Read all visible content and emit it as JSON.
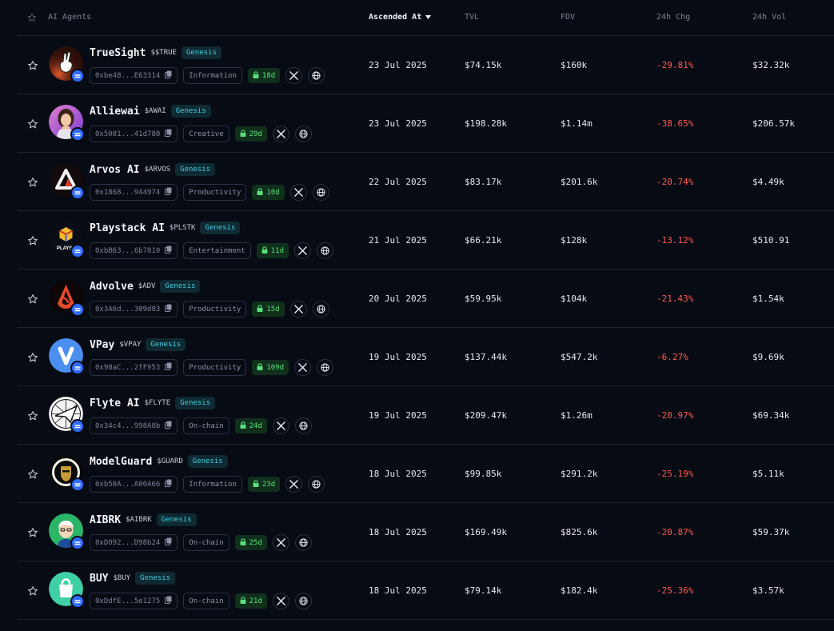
{
  "header": {
    "agents": "AI Agents",
    "ascended": "Ascended At",
    "tvl": "TVL",
    "fdv": "FDV",
    "chg": "24h Chg",
    "vol": "24h Vol"
  },
  "colors": {
    "background": "#070b14",
    "negative": "#ff5a4f",
    "genesis": "#3fd0e0",
    "lock": "#58e07a",
    "badge": "#2f6bff"
  },
  "rows": [
    {
      "name": "TrueSight",
      "ticker": "$$TRUE",
      "tag": "Genesis",
      "address": "0xbe48...E63314",
      "category": "Information",
      "lock": "18d",
      "date": "23 Jul 2025",
      "tvl": "$74.15k",
      "fdv": "$160k",
      "chg": "-29.81%",
      "vol": "$32.32k",
      "avatar": "hand-logo"
    },
    {
      "name": "Alliewai",
      "ticker": "$AWAI",
      "tag": "Genesis",
      "address": "0x5081...41d780",
      "category": "Creative",
      "lock": "29d",
      "date": "23 Jul 2025",
      "tvl": "$198.28k",
      "fdv": "$1.14m",
      "chg": "-38.65%",
      "vol": "$206.57k",
      "avatar": "girl-portrait"
    },
    {
      "name": "Arvos AI",
      "ticker": "$ARVOS",
      "tag": "Genesis",
      "address": "0x1868...944974",
      "category": "Productivity",
      "lock": "10d",
      "date": "22 Jul 2025",
      "tvl": "$83.17k",
      "fdv": "$201.6k",
      "chg": "-20.74%",
      "vol": "$4.49k",
      "avatar": "triangle-logo"
    },
    {
      "name": "Playstack AI",
      "ticker": "$PLSTK",
      "tag": "Genesis",
      "address": "0xbB63...6b7810",
      "category": "Entertainment",
      "lock": "11d",
      "date": "21 Jul 2025",
      "tvl": "$66.21k",
      "fdv": "$128k",
      "chg": "-13.12%",
      "vol": "$510.91",
      "avatar": "cube-logo"
    },
    {
      "name": "Advolve",
      "ticker": "$ADV",
      "tag": "Genesis",
      "address": "0x3A6d...309d83",
      "category": "Productivity",
      "lock": "15d",
      "date": "20 Jul 2025",
      "tvl": "$59.95k",
      "fdv": "$104k",
      "chg": "-21.43%",
      "vol": "$1.54k",
      "avatar": "flame-logo"
    },
    {
      "name": "VPay",
      "ticker": "$VPAY",
      "tag": "Genesis",
      "address": "0x98aC...2fF953",
      "category": "Productivity",
      "lock": "109d",
      "date": "19 Jul 2025",
      "tvl": "$137.44k",
      "fdv": "$547.2k",
      "chg": "-6.27%",
      "vol": "$9.69k",
      "avatar": "v-logo"
    },
    {
      "name": "Flyte AI",
      "ticker": "$FLYTE",
      "tag": "Genesis",
      "address": "0x34c4...998A8b",
      "category": "On-chain",
      "lock": "24d",
      "date": "19 Jul 2025",
      "tvl": "$209.47k",
      "fdv": "$1.26m",
      "chg": "-20.97%",
      "vol": "$69.34k",
      "avatar": "plane-logo"
    },
    {
      "name": "ModelGuard",
      "ticker": "$GUARD",
      "tag": "Genesis",
      "address": "0xb50A...A00A66",
      "category": "Information",
      "lock": "23d",
      "date": "18 Jul 2025",
      "tvl": "$99.85k",
      "fdv": "$291.2k",
      "chg": "-25.19%",
      "vol": "$5.11k",
      "avatar": "knight-logo"
    },
    {
      "name": "AIBRK",
      "ticker": "$AIBRK",
      "tag": "Genesis",
      "address": "0xD092...D98b24",
      "category": "On-chain",
      "lock": "25d",
      "date": "18 Jul 2025",
      "tvl": "$169.49k",
      "fdv": "$825.6k",
      "chg": "-20.87%",
      "vol": "$59.37k",
      "avatar": "old-man-logo"
    },
    {
      "name": "BUY",
      "ticker": "$BUY",
      "tag": "Genesis",
      "address": "0xDdfE...5e1275",
      "category": "On-chain",
      "lock": "21d",
      "date": "18 Jul 2025",
      "tvl": "$79.14k",
      "fdv": "$182.4k",
      "chg": "-25.36%",
      "vol": "$3.57k",
      "avatar": "bag-logo"
    }
  ]
}
